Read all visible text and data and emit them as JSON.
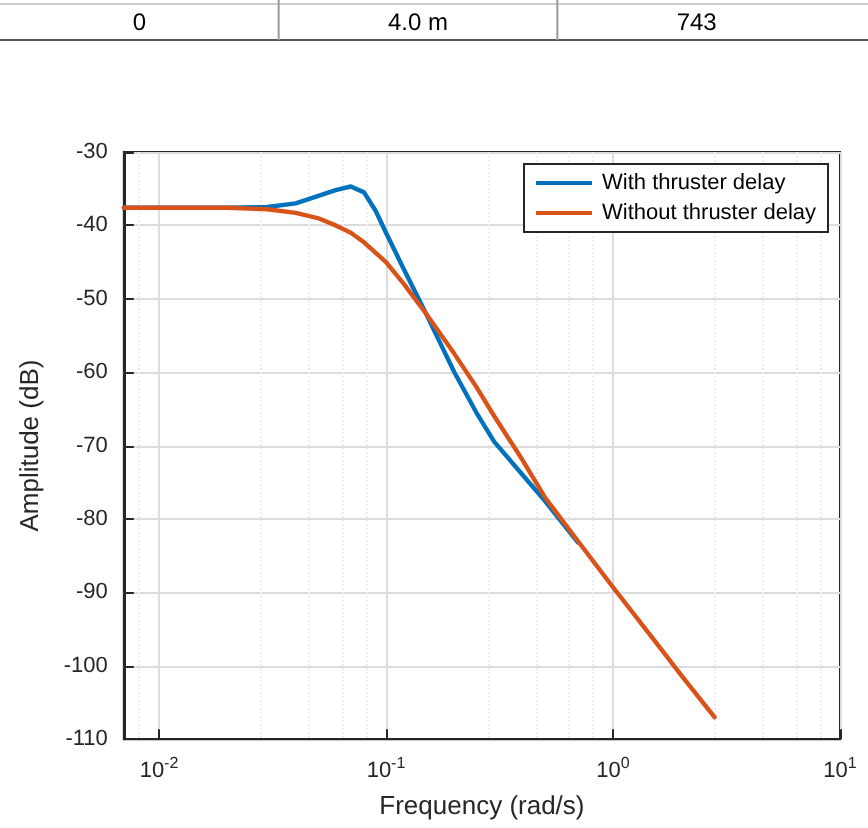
{
  "chart_data": {
    "type": "line",
    "annotations": [
      "0",
      "4.0 m",
      "743"
    ],
    "xlabel": "Frequency (rad/s)",
    "ylabel": "Amplitude (dB)",
    "series": [
      {
        "name": "With thruster delay",
        "color": "#0072bd",
        "x": [
          0.007,
          0.02,
          0.03,
          0.04,
          0.05,
          0.06,
          0.07,
          0.08,
          0.09,
          0.1,
          0.12,
          0.15,
          0.2,
          0.25,
          0.3,
          0.4,
          0.5,
          0.7
        ],
        "values": [
          -37.6,
          -37.6,
          -37.5,
          -37,
          -36,
          -35.2,
          -34.7,
          -35.5,
          -38,
          -41,
          -46,
          -52,
          -60,
          -65.5,
          -69.5,
          -74,
          -77.5,
          -83.2
        ]
      },
      {
        "name": "Without thruster delay",
        "color": "#d95319",
        "x": [
          0.007,
          0.02,
          0.03,
          0.04,
          0.05,
          0.06,
          0.07,
          0.08,
          0.1,
          0.12,
          0.15,
          0.2,
          0.25,
          0.3,
          0.4,
          0.5,
          0.7,
          1,
          1.5,
          2,
          2.8
        ],
        "values": [
          -37.6,
          -37.6,
          -37.8,
          -38.3,
          -39,
          -40,
          -41,
          -42.3,
          -45,
          -48,
          -52,
          -57.5,
          -62,
          -66,
          -72,
          -77,
          -83,
          -89.3,
          -96.3,
          -101.3,
          -107
        ]
      }
    ],
    "log": "x",
    "xlim": [
      0.007,
      10
    ],
    "xticks": [
      {
        "value": 0.01,
        "label": "10$^{-2}$"
      },
      {
        "value": 0.1,
        "label": "10$^{-1}$"
      },
      {
        "value": 1,
        "label": "10$^{0}$"
      },
      {
        "value": 10,
        "label": "10$^{1}$"
      }
    ],
    "ylim": [
      -110,
      -30
    ],
    "yticks": [
      -110,
      -100,
      -90,
      -80,
      -70,
      -60,
      -50,
      -40,
      -30
    ],
    "grid": true,
    "legend": "top right",
    "marker": "none",
    "line_style": "solid"
  }
}
